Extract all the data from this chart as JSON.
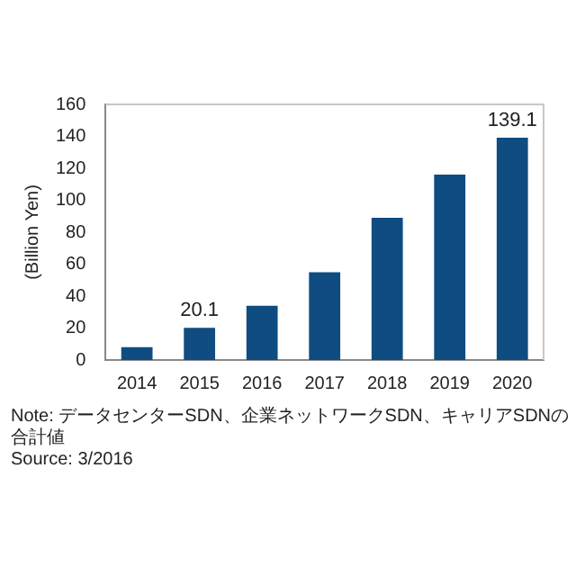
{
  "chart_data": {
    "type": "bar",
    "categories": [
      "2014",
      "2015",
      "2016",
      "2017",
      "2018",
      "2019",
      "2020"
    ],
    "values": [
      8,
      20.1,
      34,
      55,
      89,
      116,
      139.1
    ],
    "value_labels": [
      null,
      "20.1",
      null,
      null,
      null,
      null,
      "139.1"
    ],
    "color": "#0f4c81",
    "ylabel": "(Billion Yen)",
    "ylim": [
      0,
      160
    ],
    "yticks": [
      0,
      20,
      40,
      60,
      80,
      100,
      120,
      140,
      160
    ],
    "grid": false,
    "legend": false,
    "annotations": [
      "Note: データセンターSDN、企業ネットワークSDN、キャリアSDNの合計値",
      "Source: 3/2016"
    ]
  }
}
